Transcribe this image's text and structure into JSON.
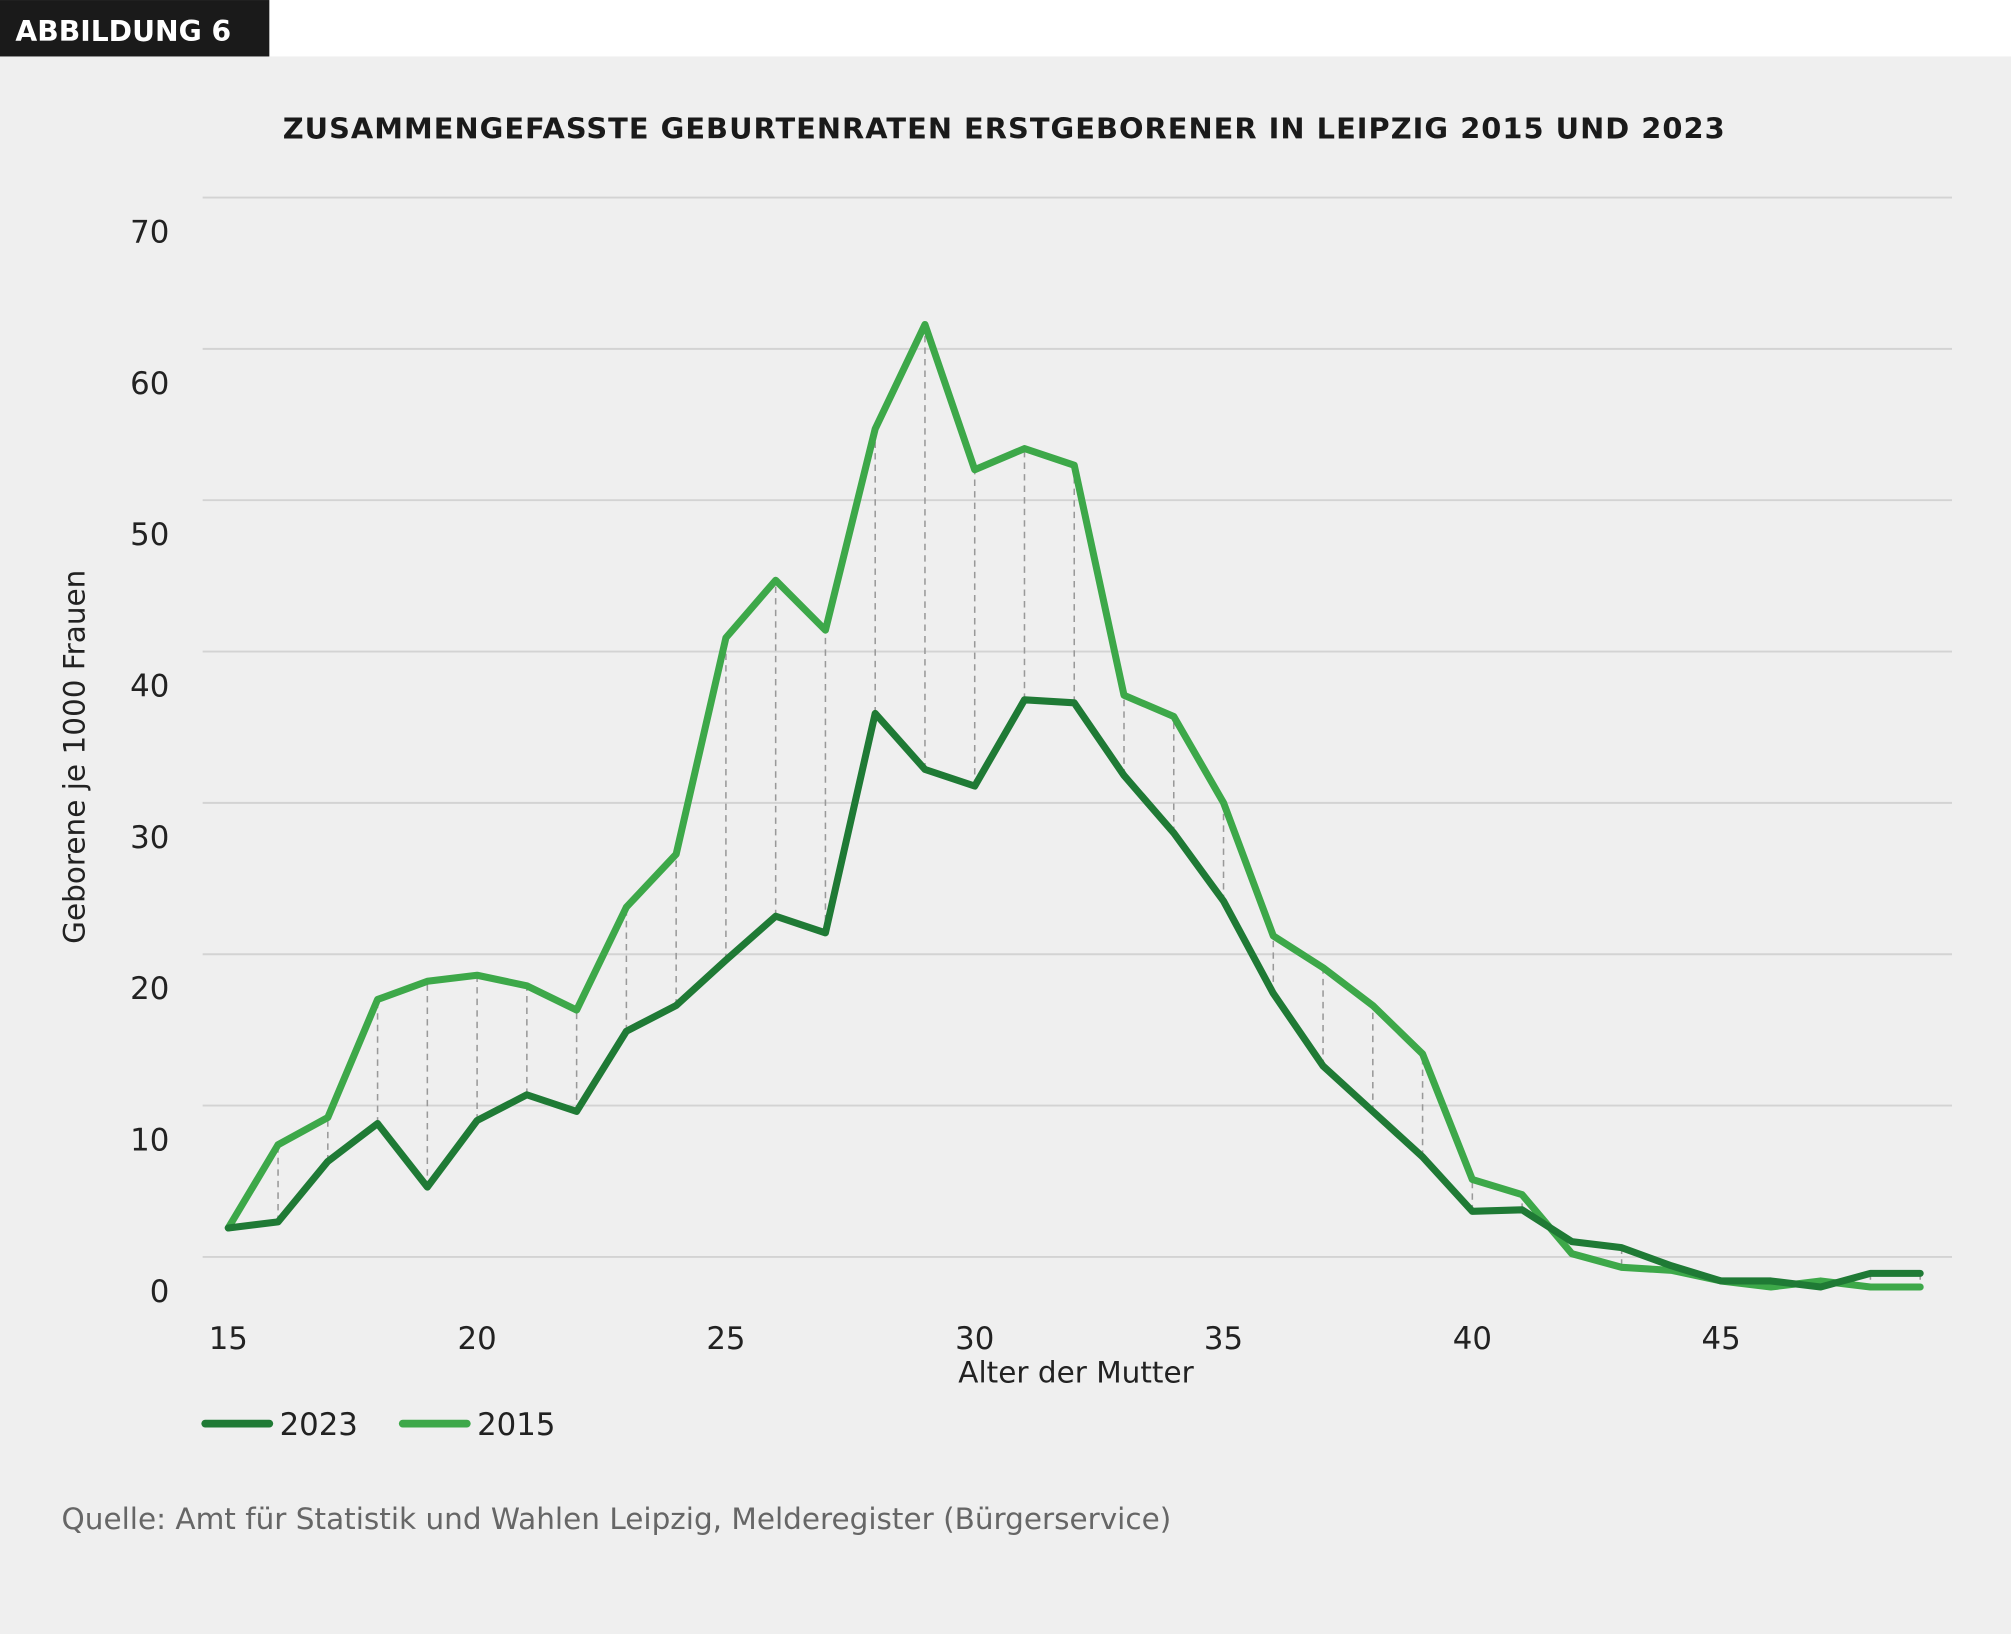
{
  "badge": "ABBILDUNG 6",
  "source": "Quelle: Amt für Statistik und Wahlen Leipzig, Melderegister (Bürgerservice)",
  "colors": {
    "series_2023": "#1f7a35",
    "series_2015": "#3da849",
    "background": "#efefef",
    "badge_bg": "#1a1a1a"
  },
  "chart_data": {
    "type": "line",
    "title": "ZUSAMMENGEFASSTE GEBURTENRATEN ERSTGEBORENER IN LEIPZIG 2015 UND 2023",
    "xlabel": "Alter der Mutter",
    "ylabel": "Geborene je 1000 Frauen",
    "xlim": [
      15,
      49
    ],
    "ylim": [
      0,
      70
    ],
    "xticks": [
      "15",
      "20",
      "25",
      "30",
      "35",
      "40",
      "45"
    ],
    "yticks": [
      "0",
      "10",
      "20",
      "30",
      "40",
      "50",
      "60",
      "70"
    ],
    "grid": true,
    "legend_position": "bottom-left",
    "x": [
      15,
      16,
      17,
      18,
      19,
      20,
      21,
      22,
      23,
      24,
      25,
      26,
      27,
      28,
      29,
      30,
      31,
      32,
      33,
      34,
      35,
      36,
      37,
      38,
      39,
      40,
      41,
      42,
      43,
      44,
      45,
      46,
      47,
      48,
      49
    ],
    "series": [
      {
        "name": "2023",
        "values": [
          4.2,
          4.6,
          8.6,
          11.1,
          6.9,
          11.3,
          13.0,
          11.9,
          17.2,
          18.9,
          21.9,
          24.8,
          23.7,
          38.2,
          34.5,
          33.4,
          39.1,
          38.9,
          34.1,
          30.3,
          25.8,
          19.7,
          14.9,
          11.9,
          8.9,
          5.3,
          5.4,
          3.3,
          2.9,
          1.7,
          0.7,
          0.7,
          0.3,
          1.2,
          1.2
        ]
      },
      {
        "name": "2015",
        "values": [
          4.2,
          9.7,
          11.5,
          19.3,
          20.5,
          20.9,
          20.2,
          18.6,
          25.4,
          28.9,
          43.2,
          47.0,
          43.7,
          57.0,
          63.9,
          54.3,
          55.7,
          54.6,
          39.4,
          38.0,
          32.3,
          23.5,
          21.4,
          18.9,
          15.7,
          7.4,
          6.4,
          2.5,
          1.6,
          1.4,
          0.7,
          0.3,
          0.7,
          0.3,
          0.3
        ]
      }
    ]
  }
}
